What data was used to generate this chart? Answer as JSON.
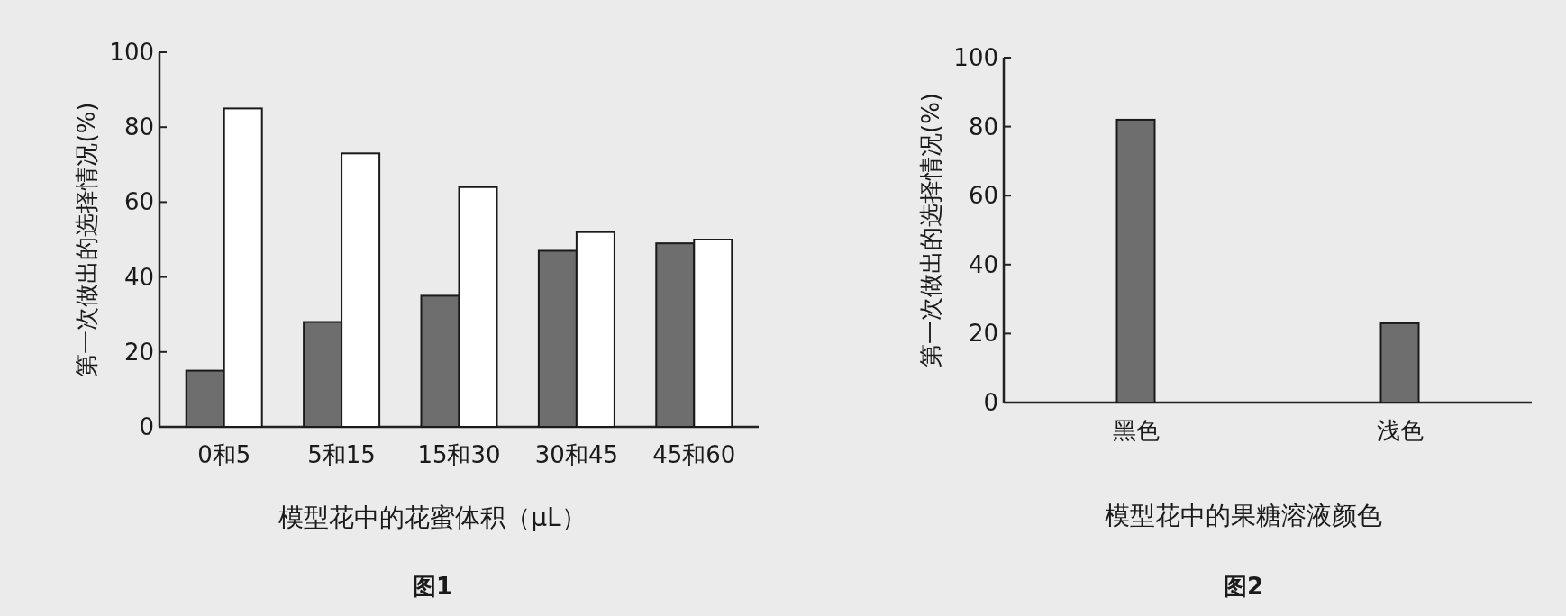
{
  "chart_data": [
    {
      "type": "bar",
      "categories": [
        "0和5",
        "5和15",
        "15和30",
        "30和45",
        "45和60"
      ],
      "series": [
        {
          "color": "#6e6e6e",
          "values": [
            15,
            28,
            35,
            47,
            49
          ]
        },
        {
          "color": "#ffffff",
          "values": [
            85,
            73,
            64,
            52,
            50
          ]
        }
      ],
      "ylim": [
        0,
        100
      ],
      "yticks": [
        0,
        20,
        40,
        60,
        80,
        100
      ],
      "ylabel": "第一次做出的选择情况(%)",
      "xlabel": "模型花中的花蜜体积（μL）",
      "annotations": [
        "图1"
      ]
    },
    {
      "type": "bar",
      "categories": [
        "黑色",
        "浅色"
      ],
      "values": [
        82,
        23
      ],
      "color": "#6e6e6e",
      "ylim": [
        0,
        100
      ],
      "yticks": [
        0,
        20,
        40,
        60,
        80,
        100
      ],
      "ylabel": "第一次做出的选择情况(%)",
      "xlabel": "模型花中的果糖溶液颜色",
      "annotations": [
        "图2"
      ]
    }
  ]
}
